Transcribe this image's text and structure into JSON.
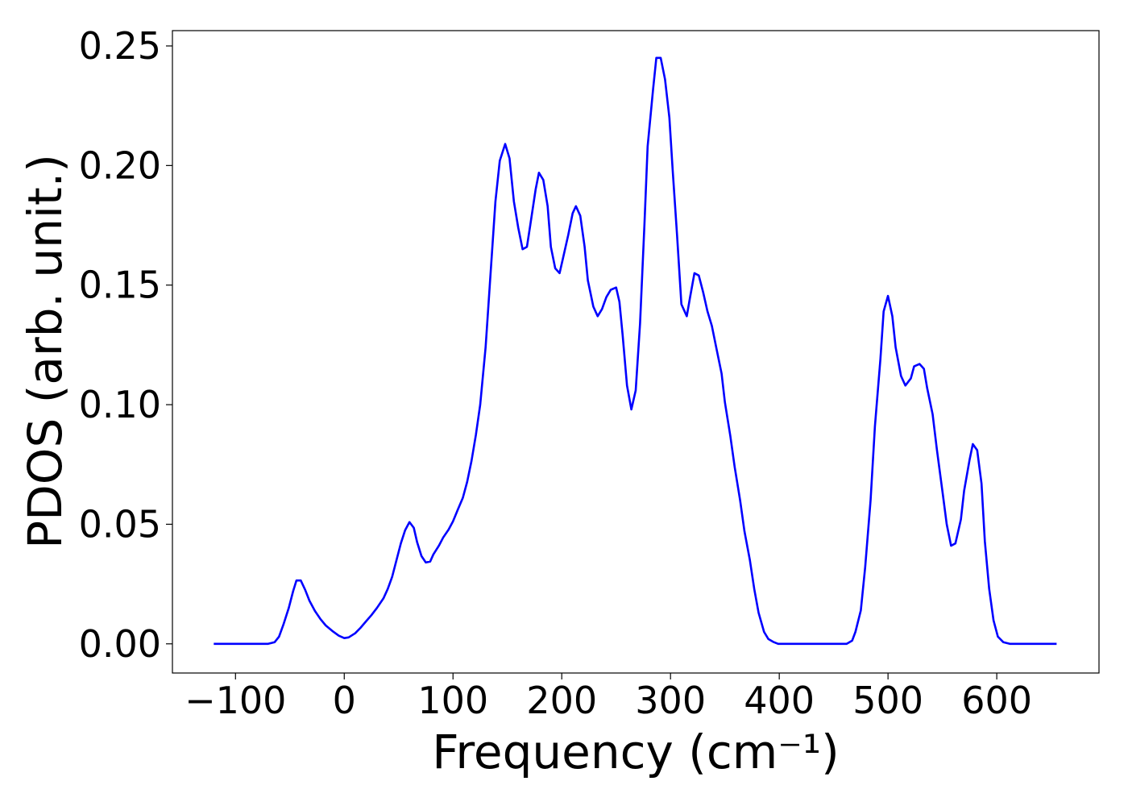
{
  "chart_data": {
    "type": "line",
    "xlabel": "Frequency (cm⁻¹)",
    "ylabel": "PDOS (arb. unit.)",
    "xlim": [
      -158,
      694
    ],
    "ylim": [
      -0.0122,
      0.2564
    ],
    "xticks": [
      {
        "value": -100,
        "label": "−100"
      },
      0,
      100,
      200,
      300,
      400,
      500,
      600
    ],
    "yticks": [
      {
        "value": 0,
        "label": "0.00"
      },
      {
        "value": 0.05,
        "label": "0.05"
      },
      {
        "value": 0.1,
        "label": "0.10"
      },
      {
        "value": 0.15,
        "label": "0.15"
      },
      {
        "value": 0.2,
        "label": "0.20"
      },
      {
        "value": 0.25,
        "label": "0.25"
      }
    ],
    "grid": false,
    "series": [
      {
        "color": "#0000ff",
        "x": [
          -120,
          -70,
          -64,
          -60,
          -56,
          -51,
          -47,
          -44,
          -40,
          -36,
          -32,
          -27,
          -22,
          -17,
          -11,
          -5,
          0,
          4,
          10,
          15,
          20,
          25,
          30,
          36,
          40,
          44,
          48,
          52,
          56,
          60,
          64,
          67,
          71,
          75,
          79,
          82,
          87,
          91,
          96,
          100,
          104,
          109,
          113,
          117,
          121,
          125,
          130,
          134,
          139,
          143,
          148,
          152,
          156,
          160,
          164,
          168,
          171,
          176,
          179,
          183,
          187,
          190,
          194,
          198,
          201,
          206,
          210,
          213,
          217,
          221,
          224,
          229,
          233,
          237,
          241,
          245,
          250,
          253,
          256,
          260,
          264,
          268,
          272,
          276,
          279,
          284,
          287,
          291,
          295,
          299,
          302,
          306,
          310,
          315,
          318,
          322,
          326,
          330,
          334,
          338,
          342,
          347,
          350,
          355,
          359,
          364,
          368,
          373,
          377,
          381,
          386,
          390,
          395,
          399,
          462,
          467,
          470,
          475,
          479,
          484,
          488,
          493,
          496,
          500,
          504,
          507,
          512,
          516,
          521,
          524,
          529,
          533,
          536,
          541,
          545,
          550,
          554,
          558,
          562,
          567,
          570,
          575,
          578,
          582,
          586,
          589,
          593,
          597,
          601,
          606,
          612,
          655
        ],
        "values": [
          0,
          0,
          0.0007,
          0.003,
          0.008,
          0.015,
          0.022,
          0.0265,
          0.0265,
          0.0226,
          0.018,
          0.0138,
          0.0104,
          0.0077,
          0.0054,
          0.0034,
          0.0024,
          0.0027,
          0.0044,
          0.0067,
          0.0094,
          0.012,
          0.015,
          0.019,
          0.023,
          0.028,
          0.035,
          0.042,
          0.0475,
          0.0509,
          0.0485,
          0.0425,
          0.0367,
          0.034,
          0.0344,
          0.0374,
          0.041,
          0.0445,
          0.0478,
          0.0512,
          0.0556,
          0.061,
          0.0677,
          0.0765,
          0.0873,
          0.1,
          0.124,
          0.151,
          0.185,
          0.202,
          0.209,
          0.203,
          0.185,
          0.174,
          0.165,
          0.166,
          0.175,
          0.19,
          0.197,
          0.194,
          0.183,
          0.166,
          0.157,
          0.155,
          0.161,
          0.171,
          0.18,
          0.183,
          0.179,
          0.166,
          0.152,
          0.141,
          0.137,
          0.14,
          0.145,
          0.148,
          0.149,
          0.143,
          0.129,
          0.108,
          0.098,
          0.106,
          0.134,
          0.175,
          0.208,
          0.232,
          0.245,
          0.245,
          0.236,
          0.22,
          0.198,
          0.171,
          0.142,
          0.137,
          0.145,
          0.155,
          0.154,
          0.147,
          0.139,
          0.133,
          0.124,
          0.113,
          0.101,
          0.087,
          0.074,
          0.06,
          0.047,
          0.035,
          0.023,
          0.013,
          0.005,
          0.002,
          0.0007,
          0,
          0,
          0.0013,
          0.005,
          0.014,
          0.032,
          0.06,
          0.091,
          0.119,
          0.139,
          0.1455,
          0.137,
          0.124,
          0.112,
          0.108,
          0.111,
          0.116,
          0.117,
          0.115,
          0.107,
          0.096,
          0.081,
          0.064,
          0.05,
          0.041,
          0.042,
          0.052,
          0.064,
          0.077,
          0.0835,
          0.081,
          0.067,
          0.043,
          0.023,
          0.0098,
          0.003,
          0.0007,
          0,
          0
        ]
      }
    ]
  }
}
